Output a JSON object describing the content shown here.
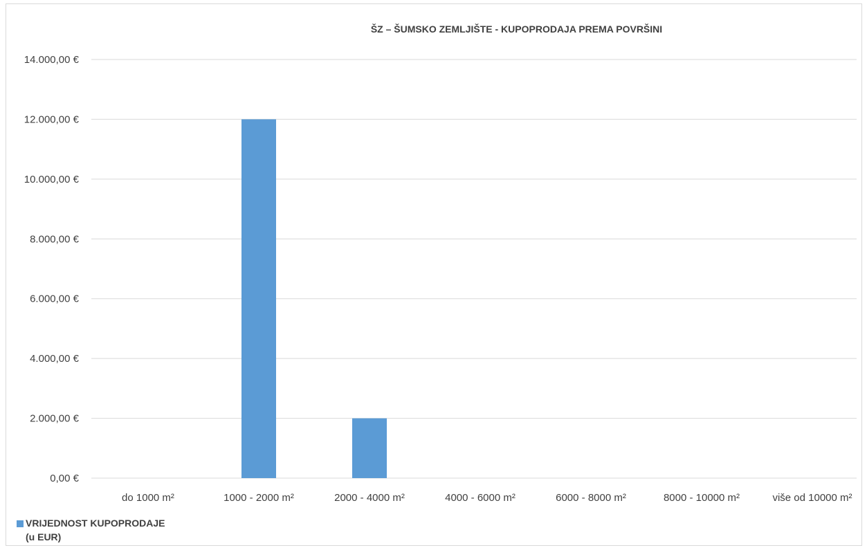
{
  "chart_data": {
    "type": "bar",
    "title": "ŠZ – ŠUMSKO ZEMLJIŠTE - KUPOPRODAJA PREMA POVRŠINI",
    "categories": [
      "do 1000 m²",
      "1000 - 2000 m²",
      "2000 - 4000 m²",
      "4000 - 6000 m²",
      "6000 - 8000 m²",
      "8000 - 10000 m²",
      "više od 10000 m²"
    ],
    "series": [
      {
        "name": "VRIJEDNOST KUPOPRODAJE (u EUR)",
        "values": [
          0,
          12000,
          2000,
          0,
          0,
          0,
          0
        ],
        "color": "#5b9bd5"
      }
    ],
    "yticks": [
      "0,00 €",
      "2.000,00 €",
      "4.000,00 €",
      "6.000,00 €",
      "8.000,00 €",
      "10.000,00 €",
      "12.000,00 €",
      "14.000,00 €"
    ],
    "ylim": [
      0,
      14000
    ],
    "grid": true,
    "legend_position": "bottom-left",
    "legend": {
      "line1": "VRIJEDNOST KUPOPRODAJE",
      "line2": "(u EUR)"
    }
  }
}
